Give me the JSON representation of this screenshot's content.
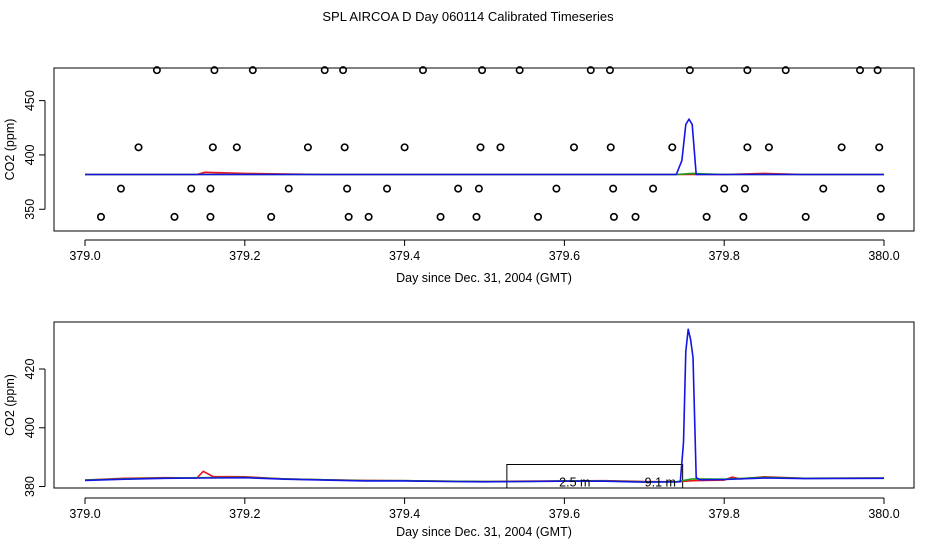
{
  "title": "SPL AIRCOA D  Day 060114  Calibrated Timeseries",
  "colors": {
    "red": "#e8141e",
    "green": "#1aa01a",
    "blue": "#1414e6",
    "axis": "#000000"
  },
  "chart_data": [
    {
      "type": "line",
      "title": "",
      "xlabel": "Day since Dec. 31, 2004 (GMT)",
      "ylabel": "CO2 (ppm)",
      "xlim": [
        379.0,
        380.0
      ],
      "ylim": [
        330,
        480
      ],
      "xticks": [
        "379.0",
        "379.2",
        "379.4",
        "379.6",
        "379.8",
        "380.0"
      ],
      "xtick_values": [
        379.0,
        379.2,
        379.4,
        379.6,
        379.8,
        380.0
      ],
      "yticks": [
        "350",
        "400",
        "450"
      ],
      "ytick_values": [
        350,
        400,
        450
      ],
      "grid": false,
      "series": [
        {
          "color": "red",
          "x": [
            379.0,
            379.1,
            379.14,
            379.15,
            379.2,
            379.3,
            379.5,
            379.7,
            379.74,
            379.8,
            379.85,
            379.9,
            380.0
          ],
          "y": [
            382,
            382,
            382,
            384,
            383,
            382,
            382,
            382,
            382,
            382,
            383,
            382,
            382
          ]
        },
        {
          "color": "green",
          "x": [
            379.0,
            379.2,
            379.4,
            379.6,
            379.74,
            379.76,
            379.8,
            380.0
          ],
          "y": [
            382,
            382,
            382,
            382,
            382,
            383,
            382,
            382
          ]
        },
        {
          "color": "blue",
          "x": [
            379.0,
            379.2,
            379.4,
            379.6,
            379.74,
            379.747,
            379.752,
            379.756,
            379.76,
            379.765,
            379.8,
            380.0
          ],
          "y": [
            382,
            382,
            382,
            382,
            382,
            395,
            428,
            433,
            428,
            382,
            382,
            382
          ]
        }
      ],
      "markers": {
        "symbol": "circle",
        "x": [
          379.09,
          379.162,
          379.21,
          379.3,
          379.323,
          379.423,
          379.497,
          379.544,
          379.633,
          379.657,
          379.757,
          379.829,
          379.877,
          379.97,
          379.992,
          379.067,
          379.16,
          379.19,
          379.279,
          379.325,
          379.4,
          379.495,
          379.52,
          379.612,
          379.658,
          379.735,
          379.829,
          379.856,
          379.947,
          379.994,
          379.045,
          379.133,
          379.157,
          379.255,
          379.328,
          379.378,
          379.467,
          379.493,
          379.59,
          379.661,
          379.711,
          379.8,
          379.826,
          379.924,
          379.996,
          379.02,
          379.112,
          379.157,
          379.233,
          379.33,
          379.355,
          379.445,
          379.49,
          379.567,
          379.662,
          379.689,
          379.778,
          379.824,
          379.902,
          379.996
        ],
        "y": [
          478,
          478,
          478,
          478,
          478,
          478,
          478,
          478,
          478,
          478,
          478,
          478,
          478,
          478,
          478,
          407,
          407,
          407,
          407,
          407,
          407,
          407,
          407,
          407,
          407,
          407,
          407,
          407,
          407,
          407,
          369,
          369,
          369,
          369,
          369,
          369,
          369,
          369,
          369,
          369,
          369,
          369,
          369,
          369,
          369,
          343,
          343,
          343,
          343,
          343,
          343,
          343,
          343,
          343,
          343,
          343,
          343,
          343,
          343,
          343
        ]
      }
    },
    {
      "type": "line",
      "title": "",
      "xlabel": "Day since Dec. 31, 2004 (GMT)",
      "ylabel": "CO2 (ppm)",
      "xlim": [
        379.0,
        380.0
      ],
      "ylim": [
        379.5,
        436
      ],
      "xticks": [
        "379.0",
        "379.2",
        "379.4",
        "379.6",
        "379.8",
        "380.0"
      ],
      "xtick_values": [
        379.0,
        379.2,
        379.4,
        379.6,
        379.8,
        380.0
      ],
      "yticks": [
        "380",
        "400",
        "420"
      ],
      "ytick_values": [
        380,
        400,
        420
      ],
      "grid": false,
      "series": [
        {
          "color": "red",
          "x": [
            379.0,
            379.05,
            379.1,
            379.14,
            379.148,
            379.16,
            379.2,
            379.25,
            379.3,
            379.35,
            379.4,
            379.45,
            379.5,
            379.55,
            379.6,
            379.65,
            379.7,
            379.74,
            379.76,
            379.8,
            379.81,
            379.82,
            379.85,
            379.9,
            380.0
          ],
          "y": [
            382.2,
            382.8,
            383.0,
            382.9,
            385.2,
            383.4,
            383.3,
            382.6,
            382.3,
            382.1,
            382.0,
            381.8,
            381.7,
            381.8,
            381.9,
            382.0,
            381.7,
            381.6,
            382.0,
            382.2,
            383.2,
            382.6,
            383.3,
            382.8,
            382.9
          ]
        },
        {
          "color": "green",
          "x": [
            379.0,
            379.05,
            379.1,
            379.15,
            379.2,
            379.25,
            379.3,
            379.35,
            379.4,
            379.45,
            379.5,
            379.55,
            379.6,
            379.65,
            379.7,
            379.74,
            379.76,
            379.8,
            379.85,
            379.9,
            380.0
          ],
          "y": [
            382.2,
            382.6,
            382.9,
            383.0,
            383.1,
            382.6,
            382.3,
            382.0,
            382.0,
            381.8,
            381.7,
            381.7,
            381.9,
            381.9,
            381.6,
            381.6,
            382.6,
            382.5,
            383.1,
            382.8,
            382.9
          ]
        },
        {
          "color": "blue",
          "x": [
            379.0,
            379.05,
            379.1,
            379.15,
            379.2,
            379.25,
            379.3,
            379.35,
            379.4,
            379.45,
            379.5,
            379.55,
            379.6,
            379.65,
            379.7,
            379.745,
            379.749,
            379.752,
            379.755,
            379.758,
            379.761,
            379.765,
            379.77,
            379.8,
            379.85,
            379.9,
            380.0
          ],
          "y": [
            382.1,
            382.5,
            382.8,
            382.9,
            383.0,
            382.5,
            382.2,
            381.9,
            381.9,
            381.7,
            381.6,
            381.7,
            381.8,
            381.8,
            381.5,
            381.6,
            395,
            426,
            433.5,
            430,
            424,
            383,
            382.3,
            382.4,
            382.9,
            382.7,
            382.8
          ]
        }
      ],
      "annotation_box": {
        "x": [
          379.528,
          379.748
        ],
        "y": [
          379.5,
          387.5
        ]
      },
      "annotations": [
        {
          "text": "2.5 m",
          "x": 379.613,
          "y": 381.4
        },
        {
          "text": "9.1 m",
          "x": 379.72,
          "y": 381.4
        }
      ]
    }
  ]
}
